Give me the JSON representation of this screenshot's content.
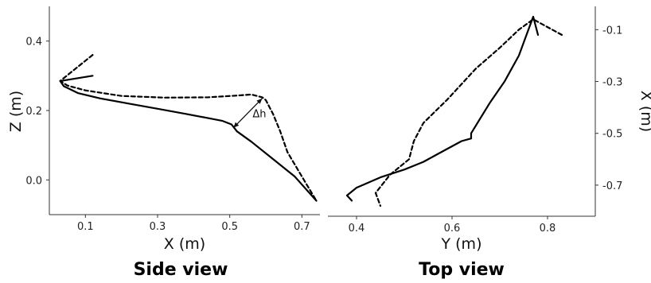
{
  "chart_data": [
    {
      "type": "line",
      "title": "Side view",
      "xlabel": "X (m)",
      "ylabel": "Z (m)",
      "xlim": [
        0.0,
        0.75
      ],
      "ylim": [
        -0.1,
        0.5
      ],
      "xticks": [
        0.1,
        0.3,
        0.5,
        0.7
      ],
      "yticks": [
        0.0,
        0.2,
        0.4
      ],
      "xtick_labels": [
        "0.1",
        "0.3",
        "0.5",
        "0.7"
      ],
      "ytick_labels": [
        "0.0",
        "0.2",
        "0.4"
      ],
      "grid": false,
      "series": [
        {
          "style": "solid",
          "x": [
            0.12,
            0.03,
            0.04,
            0.08,
            0.14,
            0.22,
            0.3,
            0.38,
            0.44,
            0.48,
            0.505,
            0.52,
            0.56,
            0.62,
            0.68,
            0.74
          ],
          "y": [
            0.3,
            0.285,
            0.27,
            0.25,
            0.235,
            0.22,
            0.205,
            0.19,
            0.178,
            0.17,
            0.16,
            0.14,
            0.11,
            0.06,
            0.01,
            -0.06
          ]
        },
        {
          "style": "dashed",
          "x": [
            0.12,
            0.03,
            0.05,
            0.1,
            0.2,
            0.32,
            0.44,
            0.52,
            0.56,
            0.59,
            0.6,
            0.62,
            0.64,
            0.66,
            0.7,
            0.74
          ],
          "y": [
            0.36,
            0.285,
            0.272,
            0.258,
            0.242,
            0.237,
            0.238,
            0.243,
            0.246,
            0.238,
            0.23,
            0.19,
            0.14,
            0.08,
            0.01,
            -0.06
          ]
        }
      ],
      "annotations": [
        {
          "text": "Δh",
          "from": [
            0.51,
            0.15
          ],
          "to": [
            0.59,
            0.235
          ]
        }
      ]
    },
    {
      "type": "line",
      "title": "Top view",
      "xlabel": "Y (m)",
      "ylabel": "X (m)",
      "xlim": [
        0.34,
        0.9
      ],
      "ylim": [
        -0.82,
        -0.01
      ],
      "xticks": [
        0.4,
        0.6,
        0.8
      ],
      "yticks": [
        -0.1,
        -0.3,
        -0.5,
        -0.7
      ],
      "xtick_labels": [
        "0.4",
        "0.6",
        "0.8"
      ],
      "ytick_labels": [
        "-0.1",
        "-0.3",
        "-0.5",
        "-0.7"
      ],
      "grid": false,
      "series": [
        {
          "style": "solid",
          "x": [
            0.78,
            0.77,
            0.76,
            0.74,
            0.71,
            0.68,
            0.66,
            0.64,
            0.64,
            0.62,
            0.58,
            0.54,
            0.5,
            0.45,
            0.4,
            0.38,
            0.39
          ],
          "y": [
            -0.12,
            -0.05,
            -0.1,
            -0.2,
            -0.3,
            -0.38,
            -0.44,
            -0.5,
            -0.52,
            -0.53,
            -0.57,
            -0.61,
            -0.64,
            -0.67,
            -0.71,
            -0.74,
            -0.76
          ]
        },
        {
          "style": "dashed",
          "x": [
            0.83,
            0.77,
            0.74,
            0.7,
            0.65,
            0.59,
            0.54,
            0.52,
            0.51,
            0.47,
            0.44,
            0.45
          ],
          "y": [
            -0.12,
            -0.06,
            -0.1,
            -0.17,
            -0.25,
            -0.37,
            -0.46,
            -0.53,
            -0.6,
            -0.66,
            -0.73,
            -0.78
          ]
        }
      ]
    }
  ]
}
